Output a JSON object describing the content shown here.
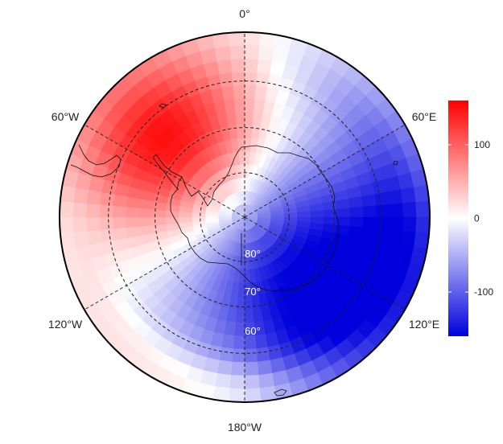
{
  "map": {
    "projection": "south-polar-stereographic",
    "longitude_labels": {
      "top": "0°",
      "upper_left": "60°W",
      "upper_right": "60°E",
      "lower_left": "120°W",
      "lower_right": "120°E",
      "bottom": "180°W"
    },
    "latitude_labels": [
      "80°",
      "70°",
      "60°"
    ],
    "latitude_circles": [
      80,
      70,
      60,
      50
    ],
    "meridians_deg": [
      0,
      60,
      120,
      180,
      240,
      300
    ],
    "field": {
      "description_units": "anomaly",
      "min": -160,
      "max": 160,
      "positive_center": {
        "lon_deg": -45,
        "lat_deg": -67,
        "value": 160
      },
      "negative_center": {
        "lon_deg": 130,
        "lat_deg": -68,
        "value": -160
      }
    }
  },
  "colorbar": {
    "min": -160,
    "max": 160,
    "ticks": [
      {
        "value": 100,
        "label": "100"
      },
      {
        "value": 0,
        "label": "0"
      },
      {
        "value": -100,
        "label": "-100"
      }
    ],
    "colors": {
      "low": "#0000dd",
      "mid": "#ffffff",
      "high": "#ff0000"
    }
  }
}
